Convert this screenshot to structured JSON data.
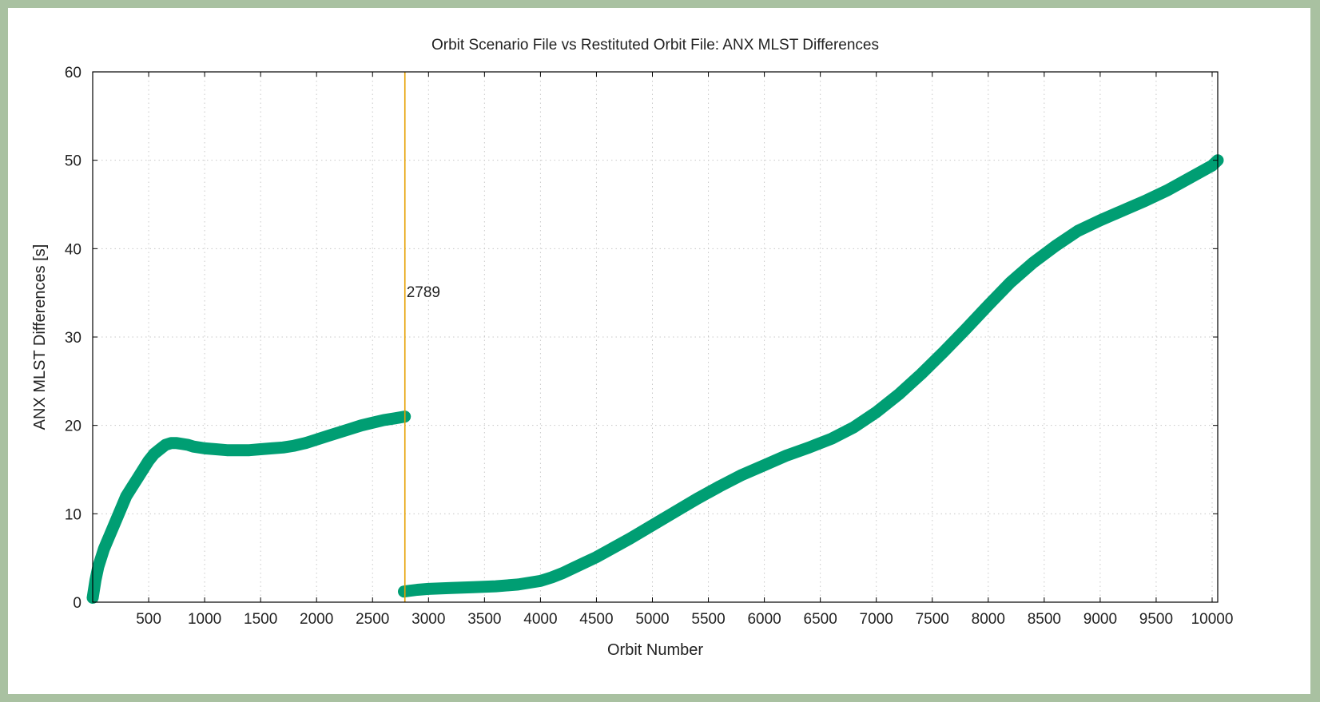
{
  "chart_data": {
    "type": "scatter",
    "title": "Orbit Scenario File vs Restituted Orbit File: ANX MLST Differences",
    "xlabel": "Orbit Number",
    "ylabel": "ANX MLST Differences [s]",
    "xlim": [
      0,
      10050
    ],
    "ylim": [
      0,
      60
    ],
    "xticks": [
      500,
      1000,
      1500,
      2000,
      2500,
      3000,
      3500,
      4000,
      4500,
      5000,
      5500,
      6000,
      6500,
      7000,
      7500,
      8000,
      8500,
      9000,
      9500,
      10000
    ],
    "yticks": [
      0,
      10,
      20,
      30,
      40,
      50,
      60
    ],
    "grid": true,
    "colors": {
      "series": "#009e73",
      "marker_line": "#e69f00",
      "axis": "#000000",
      "grid": "#c8c8c8"
    },
    "series": [
      {
        "x": [
          0,
          25,
          50,
          100,
          150,
          200,
          250,
          300,
          350,
          400,
          450,
          500,
          550,
          600,
          650,
          700,
          750,
          800,
          850,
          900,
          1000,
          1100,
          1200,
          1300,
          1400,
          1500,
          1600,
          1700,
          1800,
          1900,
          2000,
          2100,
          2200,
          2300,
          2400,
          2500,
          2600,
          2700,
          2789
        ],
        "y": [
          0.5,
          2.5,
          4,
          6,
          7.5,
          9,
          10.5,
          12,
          13,
          14,
          15,
          16,
          16.8,
          17.3,
          17.8,
          18,
          18,
          17.9,
          17.8,
          17.6,
          17.4,
          17.3,
          17.2,
          17.2,
          17.2,
          17.3,
          17.4,
          17.5,
          17.7,
          18,
          18.4,
          18.8,
          19.2,
          19.6,
          20,
          20.3,
          20.6,
          20.8,
          21
        ]
      },
      {
        "x": [
          2780,
          2900,
          3000,
          3200,
          3400,
          3600,
          3800,
          4000,
          4100,
          4200,
          4300,
          4400,
          4500,
          4600,
          4800,
          5000,
          5200,
          5400,
          5600,
          5800,
          6000,
          6200,
          6400,
          6600,
          6800,
          7000,
          7200,
          7400,
          7600,
          7800,
          8000,
          8200,
          8400,
          8600,
          8800,
          9000,
          9200,
          9400,
          9600,
          9800,
          10000,
          10050
        ],
        "y": [
          1.2,
          1.4,
          1.5,
          1.6,
          1.7,
          1.8,
          2,
          2.4,
          2.8,
          3.3,
          3.9,
          4.5,
          5.1,
          5.8,
          7.2,
          8.7,
          10.2,
          11.7,
          13.1,
          14.4,
          15.5,
          16.6,
          17.5,
          18.5,
          19.8,
          21.5,
          23.5,
          25.8,
          28.3,
          30.9,
          33.6,
          36.2,
          38.4,
          40.3,
          42,
          43.2,
          44.3,
          45.4,
          46.6,
          48,
          49.4,
          50
        ]
      }
    ],
    "annotations": [
      {
        "type": "vline",
        "x": 2789,
        "label": "2789",
        "label_y": 34.5
      }
    ]
  }
}
